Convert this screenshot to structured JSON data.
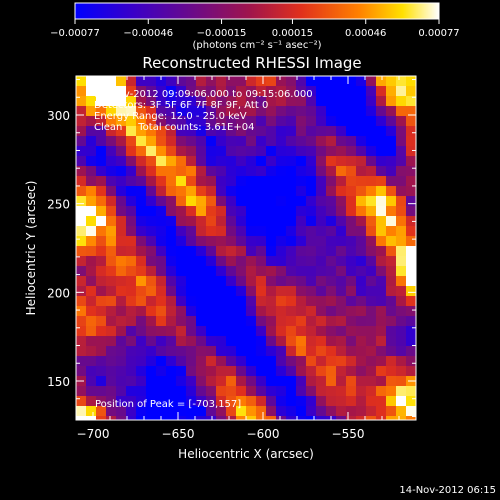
{
  "chart_data": {
    "type": "heatmap",
    "title": "Reconstructed RHESSI Image",
    "xlabel": "Heliocentric X (arcsec)",
    "ylabel": "Heliocentric Y (arcsec)",
    "xlim": [
      -710,
      -510
    ],
    "ylim": [
      128,
      322
    ],
    "x_ticks": [
      -700,
      -650,
      -600,
      -550
    ],
    "y_ticks": [
      150,
      200,
      250,
      300
    ],
    "x_tick_labels": [
      "−700",
      "−650",
      "−600",
      "−550"
    ],
    "y_tick_labels": [
      "150",
      "200",
      "250",
      "300"
    ],
    "colorbar": {
      "range": [
        -0.00077,
        0.00077
      ],
      "tick_labels": [
        "−0.00077",
        "−0.00046",
        "−0.00015",
        "0.00015",
        "0.00046",
        "0.00077"
      ],
      "unit_label": "(photons cm⁻² s⁻¹ asec⁻²)",
      "colormap": [
        "#0000ff",
        "#4b00b4",
        "#7a0f78",
        "#c81f3a",
        "#ff5a00",
        "#ffd000",
        "#ffffff"
      ]
    },
    "info_lines": [
      "14-Nov-2012 09:09:06.000 to 09:15:06.000",
      "Detectors: 3F 5F 6F 7F 8F 9F, Att 0",
      "Energy Range: 12.0 - 25.0 keV",
      "Clean     Total counts: 3.61E+04"
    ],
    "peak_label": "Position of Peak = [-703,157]",
    "peak_position": [
      -703,
      157
    ]
  },
  "timestamp": "14-Nov-2012 06:15"
}
